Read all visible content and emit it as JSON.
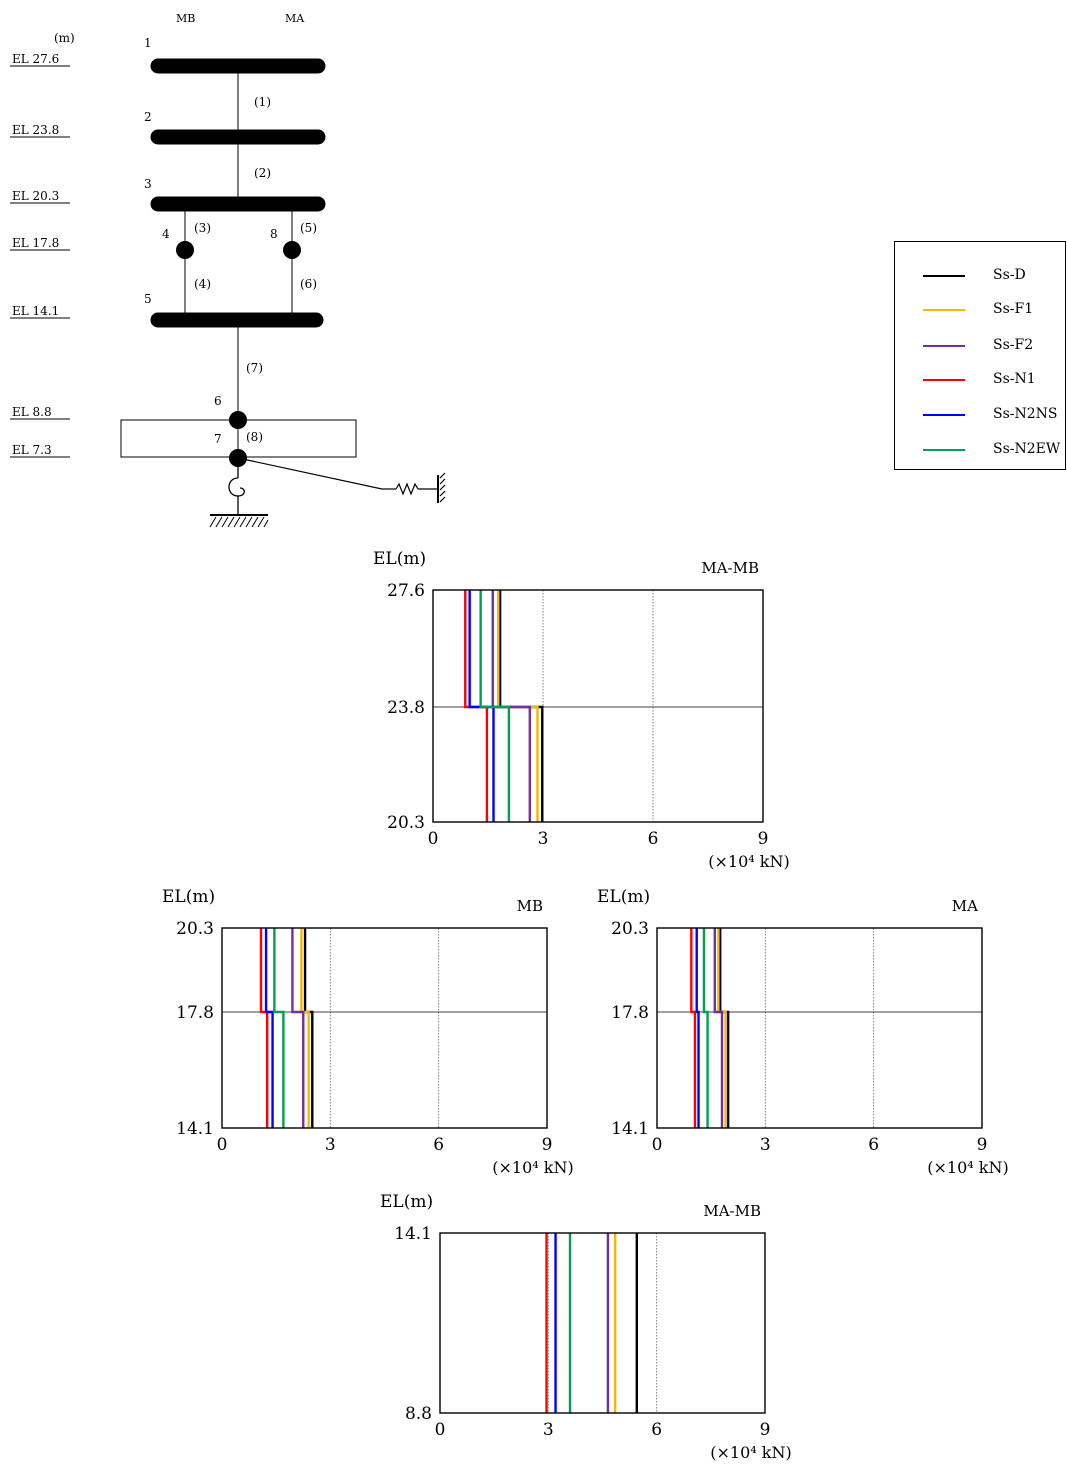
{
  "model": {
    "header_mb": "MB",
    "header_ma": "MA",
    "unit_label": "(m)",
    "elevations": [
      "EL 27.6",
      "EL 23.8",
      "EL 20.3",
      "EL 17.8",
      "EL 14.1",
      "EL  8.8",
      "EL  7.3"
    ],
    "node_numbers": [
      "1",
      "2",
      "3",
      "4",
      "8",
      "5",
      "6",
      "7"
    ],
    "member_numbers": [
      "(1)",
      "(2)",
      "(3)",
      "(5)",
      "(4)",
      "(6)",
      "(7)",
      "(8)"
    ]
  },
  "legend": {
    "items": [
      {
        "label": "Ss-D",
        "color": "#000000"
      },
      {
        "label": "Ss-F1",
        "color": "#f5b800"
      },
      {
        "label": "Ss-F2",
        "color": "#7030a0"
      },
      {
        "label": "Ss-N1",
        "color": "#ff0000"
      },
      {
        "label": "Ss-N2NS",
        "color": "#0000ff"
      },
      {
        "label": "Ss-N2EW",
        "color": "#00a050"
      }
    ]
  },
  "chart_data": [
    {
      "type": "line",
      "title": "MA-MB",
      "ylabel": "EL(m)",
      "xunit": "(×10⁴ kN)",
      "xlim": [
        0,
        9
      ],
      "xticks": [
        "0",
        "3",
        "6",
        "9"
      ],
      "y_levels": [
        "27.6",
        "23.8",
        "20.3"
      ],
      "segments": [
        {
          "top": 27.6,
          "bottom": 23.8
        },
        {
          "top": 23.8,
          "bottom": 20.3
        }
      ],
      "series": [
        {
          "name": "Ss-D",
          "values": [
            1.83,
            2.98
          ]
        },
        {
          "name": "Ss-F1",
          "values": [
            1.78,
            2.85
          ]
        },
        {
          "name": "Ss-F2",
          "values": [
            1.63,
            2.64
          ]
        },
        {
          "name": "Ss-N1",
          "values": [
            0.88,
            1.47
          ]
        },
        {
          "name": "Ss-N2NS",
          "values": [
            1.0,
            1.65
          ]
        },
        {
          "name": "Ss-N2EW",
          "values": [
            1.3,
            2.07
          ]
        }
      ]
    },
    {
      "type": "line",
      "title": "MB",
      "ylabel": "EL(m)",
      "xunit": "(×10⁴ kN)",
      "xlim": [
        0,
        9
      ],
      "xticks": [
        "0",
        "3",
        "6",
        "9"
      ],
      "y_levels": [
        "20.3",
        "17.8",
        "14.1"
      ],
      "segments": [
        {
          "top": 20.3,
          "bottom": 17.8
        },
        {
          "top": 17.8,
          "bottom": 14.1
        }
      ],
      "series": [
        {
          "name": "Ss-D",
          "values": [
            2.3,
            2.5
          ]
        },
        {
          "name": "Ss-F1",
          "values": [
            2.2,
            2.4
          ]
        },
        {
          "name": "Ss-F2",
          "values": [
            1.95,
            2.25
          ]
        },
        {
          "name": "Ss-N1",
          "values": [
            1.08,
            1.25
          ]
        },
        {
          "name": "Ss-N2NS",
          "values": [
            1.22,
            1.4
          ]
        },
        {
          "name": "Ss-N2EW",
          "values": [
            1.45,
            1.7
          ]
        }
      ]
    },
    {
      "type": "line",
      "title": "MA",
      "ylabel": "EL(m)",
      "xunit": "(×10⁴ kN)",
      "xlim": [
        0,
        9
      ],
      "xticks": [
        "0",
        "3",
        "6",
        "9"
      ],
      "y_levels": [
        "20.3",
        "17.8",
        "14.1"
      ],
      "segments": [
        {
          "top": 20.3,
          "bottom": 17.8
        },
        {
          "top": 17.8,
          "bottom": 14.1
        }
      ],
      "series": [
        {
          "name": "Ss-D",
          "values": [
            1.75,
            1.97
          ]
        },
        {
          "name": "Ss-F1",
          "values": [
            1.7,
            1.9
          ]
        },
        {
          "name": "Ss-F2",
          "values": [
            1.6,
            1.8
          ]
        },
        {
          "name": "Ss-N1",
          "values": [
            0.95,
            1.05
          ]
        },
        {
          "name": "Ss-N2NS",
          "values": [
            1.1,
            1.15
          ]
        },
        {
          "name": "Ss-N2EW",
          "values": [
            1.3,
            1.4
          ]
        }
      ]
    },
    {
      "type": "line",
      "title": "MA-MB",
      "ylabel": "EL(m)",
      "xunit": "(×10⁴ kN)",
      "xlim": [
        0,
        9
      ],
      "xticks": [
        "0",
        "3",
        "6",
        "9"
      ],
      "y_levels": [
        "14.1",
        "8.8"
      ],
      "segments": [
        {
          "top": 14.1,
          "bottom": 8.8
        }
      ],
      "series": [
        {
          "name": "Ss-D",
          "values": [
            5.45
          ]
        },
        {
          "name": "Ss-F1",
          "values": [
            4.85
          ]
        },
        {
          "name": "Ss-F2",
          "values": [
            4.65
          ]
        },
        {
          "name": "Ss-N1",
          "values": [
            2.95
          ]
        },
        {
          "name": "Ss-N2NS",
          "values": [
            3.2
          ]
        },
        {
          "name": "Ss-N2EW",
          "values": [
            3.6
          ]
        }
      ]
    }
  ]
}
